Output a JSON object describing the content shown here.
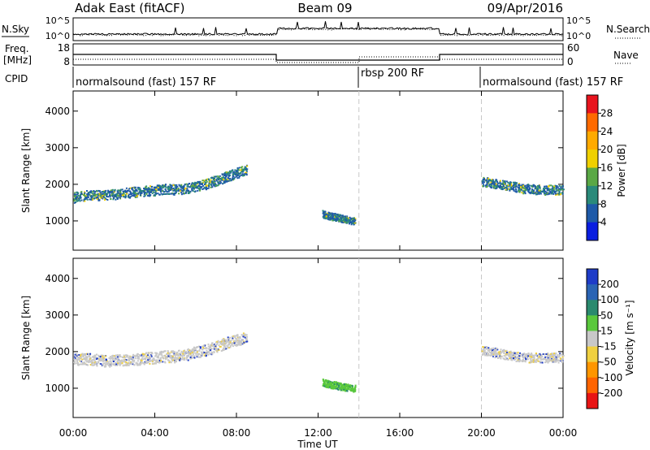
{
  "header": {
    "radar_title": "Adak East (fitACF)",
    "beam": "Beam 09",
    "date": "09/Apr/2016"
  },
  "panels": {
    "nsky": {
      "left_label": "N.Sky",
      "right_label": "N.Search",
      "scale_top": "10^5",
      "scale_bottom": "10^0"
    },
    "freq": {
      "left_label_1": "Freq.",
      "left_label_2": "[MHz]",
      "right_label": "Nave",
      "left_max": "18",
      "left_min": "8",
      "right_max": "60",
      "right_min": "0"
    },
    "cpid": {
      "left_label": "CPID",
      "segments": [
        {
          "label": "normalsound (fast) 157 RF",
          "start_h": 0,
          "end_h": 14
        },
        {
          "label": "rbsp 200 RF",
          "start_h": 14,
          "end_h": 20
        },
        {
          "label": "normalsound (fast) 157 RF",
          "start_h": 20,
          "end_h": 24
        }
      ]
    }
  },
  "colorbars": {
    "power": {
      "label": "Power [dB]",
      "ticks": [
        "28",
        "24",
        "20",
        "16",
        "12",
        "8",
        "4"
      ],
      "colors": [
        "#e8141e",
        "#ff6a00",
        "#ffaa00",
        "#f0d000",
        "#5aa845",
        "#2a8a7a",
        "#1e5aa8",
        "#0a1ee0"
      ]
    },
    "velocity": {
      "label": "Velocity [m s⁻¹]",
      "ticks": [
        "200",
        "100",
        "50",
        "15",
        "-15",
        "-50",
        "-100",
        "-200"
      ],
      "colors": [
        "#1e3cc8",
        "#2a64b4",
        "#2a8a6e",
        "#5ac83c",
        "#c8c8c8",
        "#f0d040",
        "#ff9600",
        "#ff6400",
        "#e81414"
      ]
    }
  },
  "chart_data": [
    {
      "type": "scatter",
      "name": "power",
      "xlabel": "",
      "ylabel": "Slant Range [km]",
      "xlim": [
        0,
        24
      ],
      "ylim": [
        200,
        4550
      ],
      "x_tick_labels": [
        "00:00",
        "04:00",
        "08:00",
        "12:00",
        "16:00",
        "20:00",
        "00:00"
      ],
      "y_ticks": [
        1000,
        2000,
        3000,
        4000
      ],
      "mode_change_lines_h": [
        14,
        20
      ],
      "echo_bands": [
        {
          "t": [
            0.0,
            0.5,
            1.0,
            1.5,
            2.0,
            2.5,
            3.0,
            3.5,
            4.0,
            4.5,
            5.0,
            5.5,
            6.0,
            6.5,
            7.0,
            7.5,
            8.0,
            8.5
          ],
          "center": [
            1650,
            1700,
            1720,
            1700,
            1740,
            1780,
            1800,
            1830,
            1850,
            1880,
            1860,
            1900,
            1960,
            2020,
            2120,
            2220,
            2320,
            2420
          ],
          "width": 280
        },
        {
          "t": [
            12.2,
            12.5,
            12.8,
            13.1,
            13.4,
            13.8
          ],
          "center": [
            1200,
            1150,
            1120,
            1080,
            1050,
            1000
          ],
          "width": 200
        },
        {
          "t": [
            20.0,
            20.5,
            21.0,
            21.5,
            22.0,
            22.5,
            23.0,
            23.5,
            24.0
          ],
          "center": [
            2100,
            2050,
            2000,
            1960,
            1900,
            1880,
            1860,
            1860,
            1850
          ],
          "width": 260
        }
      ]
    },
    {
      "type": "scatter",
      "name": "velocity",
      "xlabel": "Time UT",
      "ylabel": "Slant Range [km]",
      "xlim": [
        0,
        24
      ],
      "ylim": [
        200,
        4550
      ],
      "x_tick_labels": [
        "00:00",
        "04:00",
        "08:00",
        "12:00",
        "16:00",
        "20:00",
        "00:00"
      ],
      "y_ticks": [
        1000,
        2000,
        3000,
        4000
      ],
      "mode_change_lines_h": [
        14,
        20
      ],
      "echo_bands": [
        {
          "t": [
            0.0,
            0.5,
            1.0,
            1.5,
            2.0,
            2.5,
            3.0,
            3.5,
            4.0,
            4.5,
            5.0,
            5.5,
            6.0,
            6.5,
            7.0,
            7.5,
            8.0,
            8.5
          ],
          "center": [
            1800,
            1820,
            1800,
            1760,
            1760,
            1800,
            1800,
            1830,
            1850,
            1880,
            1880,
            1920,
            2000,
            2050,
            2150,
            2250,
            2320,
            2420
          ],
          "width": 320
        },
        {
          "t": [
            12.2,
            12.5,
            12.8,
            13.1,
            13.4,
            13.8
          ],
          "center": [
            1180,
            1120,
            1100,
            1060,
            1030,
            1000
          ],
          "width": 200
        },
        {
          "t": [
            20.0,
            20.5,
            21.0,
            21.5,
            22.0,
            22.5,
            23.0,
            23.5,
            24.0
          ],
          "center": [
            2050,
            2000,
            1950,
            1900,
            1850,
            1850,
            1850,
            1850,
            1850
          ],
          "width": 260
        }
      ]
    }
  ]
}
